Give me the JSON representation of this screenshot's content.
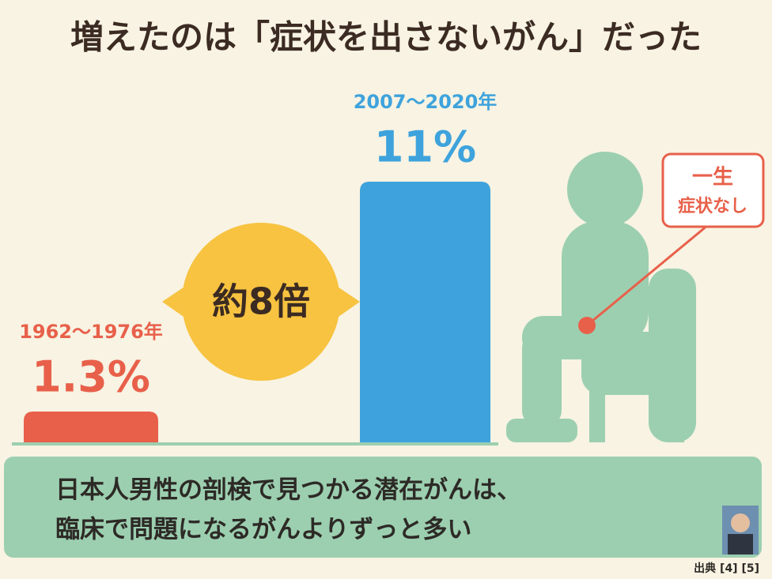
{
  "chart_data": {
    "type": "bar",
    "title": "増えたのは「症状を出さないがん」だった",
    "categories": [
      "1962〜1976年",
      "2007〜2020年"
    ],
    "values": [
      1.3,
      11
    ],
    "value_labels": [
      "1.3%",
      "11%"
    ],
    "colors": [
      "#e8604a",
      "#3ea3dc"
    ],
    "annotation": "約8倍",
    "callout": [
      "一生",
      "症状なし"
    ],
    "footer": [
      "日本人男性の剖検で見つかる潜在がんは、",
      "臨床で問題になるがんよりずっと多い"
    ],
    "source": "出典 [4] [5]"
  }
}
